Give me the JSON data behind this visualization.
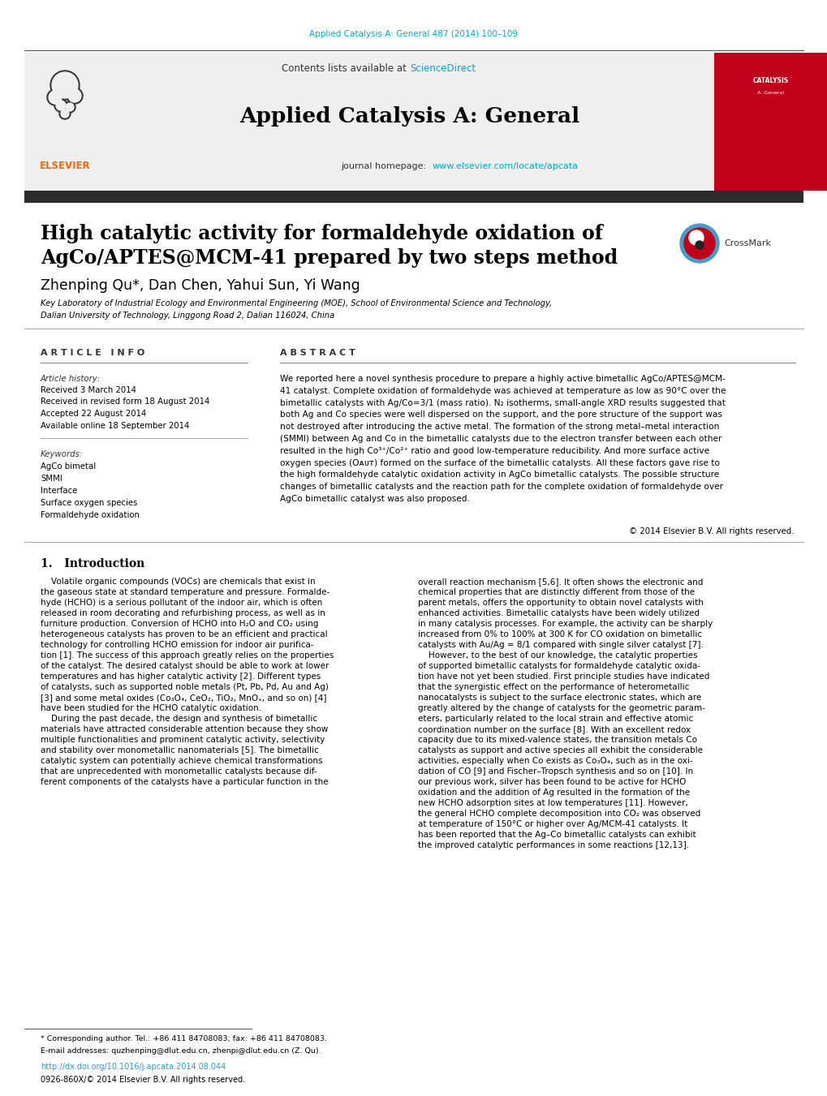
{
  "bg_color": "#ffffff",
  "header_journal_text": "Applied Catalysis A: General 487 (2014) 100–109",
  "header_journal_color": "#00aacc",
  "contents_text": "Contents lists available at ",
  "science_direct_text": "ScienceDirect",
  "science_direct_color": "#00aacc",
  "journal_title": "Applied Catalysis A: General",
  "journal_homepage_text": "journal homepage: ",
  "journal_homepage_url": "www.elsevier.com/locate/apcata",
  "journal_homepage_color": "#00aacc",
  "paper_title_line1": "High catalytic activity for formaldehyde oxidation of",
  "paper_title_line2": "AgCo/APTES@MCM-41 prepared by two steps method",
  "authors": "Zhenping Qu*, Dan Chen, Yahui Sun, Yi Wang",
  "affiliation_line1": "Key Laboratory of Industrial Ecology and Environmental Engineering (MOE), School of Environmental Science and Technology,",
  "affiliation_line2": "Dalian University of Technology, Linggong Road 2, Dalian 116024, China",
  "divider_color": "#000000",
  "dark_bar_color": "#2b2b2b",
  "section_article_info": "A R T I C L E   I N F O",
  "section_abstract": "A B S T R A C T",
  "article_history_label": "Article history:",
  "received1": "Received 3 March 2014",
  "received2": "Received in revised form 18 August 2014",
  "accepted": "Accepted 22 August 2014",
  "available": "Available online 18 September 2014",
  "keywords_label": "Keywords:",
  "keywords": [
    "AgCo bimetal",
    "SMMI",
    "Interface",
    "Surface oxygen species",
    "Formaldehyde oxidation"
  ],
  "copyright_text": "© 2014 Elsevier B.V. All rights reserved.",
  "intro_section": "1.   Introduction",
  "footnote_star": "* Corresponding author. Tel.: +86 411 84708083; fax: +86 411 84708083.",
  "footnote_email": "E-mail addresses: quzhenping@dlut.edu.cn, zhenpi@dlut.edu.cn (Z. Qu).",
  "footnote_doi": "http://dx.doi.org/10.1016/j.apcata.2014.08.044",
  "footnote_issn": "0926-860X/© 2014 Elsevier B.V. All rights reserved.",
  "elsevier_color": "#ff6600",
  "red_sidebar_color": "#c0001a",
  "crossmark_blue": "#4a9cc7",
  "abstract_lines": [
    "We reported here a novel synthesis procedure to prepare a highly active bimetallic AgCo/APTES@MCM-",
    "41 catalyst. Complete oxidation of formaldehyde was achieved at temperature as low as 90°C over the",
    "bimetallic catalysts with Ag/Co=3/1 (mass ratio). N₂ isotherms, small-angle XRD results suggested that",
    "both Ag and Co species were well dispersed on the support, and the pore structure of the support was",
    "not destroyed after introducing the active metal. The formation of the strong metal–metal interaction",
    "(SMMI) between Ag and Co in the bimetallic catalysts due to the electron transfer between each other",
    "resulted in the high Co³⁺/Co²⁺ ratio and good low-temperature reducibility. And more surface active",
    "oxygen species (Oᴀᴜᴛ) formed on the surface of the bimetallic catalysts. All these factors gave rise to",
    "the high formaldehyde catalytic oxidation activity in AgCo bimetallic catalysts. The possible structure",
    "changes of bimetallic catalysts and the reaction path for the complete oxidation of formaldehyde over",
    "AgCo bimetallic catalyst was also proposed."
  ],
  "col1_lines": [
    "    Volatile organic compounds (VOCs) are chemicals that exist in",
    "the gaseous state at standard temperature and pressure. Formalde-",
    "hyde (HCHO) is a serious pollutant of the indoor air, which is often",
    "released in room decorating and refurbishing process, as well as in",
    "furniture production. Conversion of HCHO into H₂O and CO₂ using",
    "heterogeneous catalysts has proven to be an efficient and practical",
    "technology for controlling HCHO emission for indoor air purifica-",
    "tion [1]. The success of this approach greatly relies on the properties",
    "of the catalyst. The desired catalyst should be able to work at lower",
    "temperatures and has higher catalytic activity [2]. Different types",
    "of catalysts, such as supported noble metals (Pt, Pb, Pd, Au and Ag)",
    "[3] and some metal oxides (Co₃O₄, CeO₂, TiO₂, MnOₓ, and so on) [4]",
    "have been studied for the HCHO catalytic oxidation.",
    "    During the past decade, the design and synthesis of bimetallic",
    "materials have attracted considerable attention because they show",
    "multiple functionalities and prominent catalytic activity, selectivity",
    "and stability over monometallic nanomaterials [5]. The bimetallic",
    "catalytic system can potentially achieve chemical transformations",
    "that are unprecedented with monometallic catalysts because dif-",
    "ferent components of the catalysts have a particular function in the"
  ],
  "col2_lines": [
    "overall reaction mechanism [5,6]. It often shows the electronic and",
    "chemical properties that are distinctly different from those of the",
    "parent metals, offers the opportunity to obtain novel catalysts with",
    "enhanced activities. Bimetallic catalysts have been widely utilized",
    "in many catalysis processes. For example, the activity can be sharply",
    "increased from 0% to 100% at 300 K for CO oxidation on bimetallic",
    "catalysts with Au/Ag = 8/1 compared with single silver catalyst [7].",
    "    However, to the best of our knowledge, the catalytic properties",
    "of supported bimetallic catalysts for formaldehyde catalytic oxida-",
    "tion have not yet been studied. First principle studies have indicated",
    "that the synergistic effect on the performance of heterometallic",
    "nanocatalysts is subject to the surface electronic states, which are",
    "greatly altered by the change of catalysts for the geometric param-",
    "eters, particularly related to the local strain and effective atomic",
    "coordination number on the surface [8]. With an excellent redox",
    "capacity due to its mixed-valence states, the transition metals Co",
    "catalysts as support and active species all exhibit the considerable",
    "activities, especially when Co exists as Co₃O₄, such as in the oxi-",
    "dation of CO [9] and Fischer–Tropsch synthesis and so on [10]. In",
    "our previous work, silver has been found to be active for HCHO",
    "oxidation and the addition of Ag resulted in the formation of the",
    "new HCHO adsorption sites at low temperatures [11]. However,",
    "the general HCHO complete decomposition into CO₂ was observed",
    "at temperature of 150°C or higher over Ag/MCM-41 catalysts. It",
    "has been reported that the Ag–Co bimetallic catalysts can exhibit",
    "the improved catalytic performances in some reactions [12,13]."
  ]
}
